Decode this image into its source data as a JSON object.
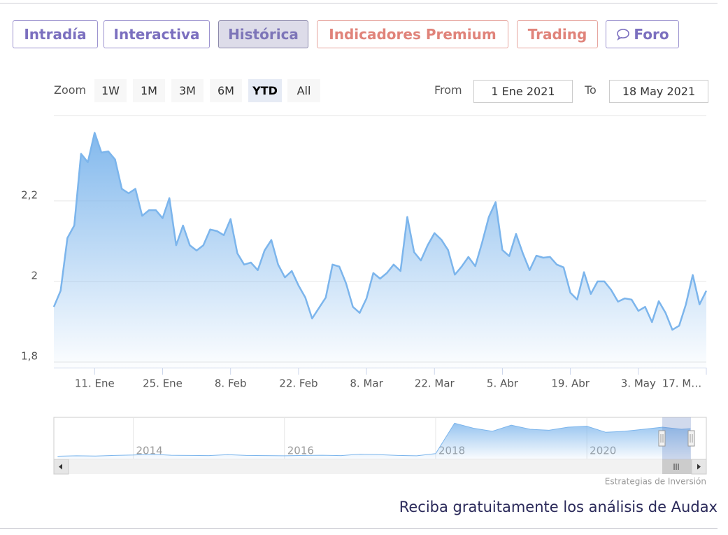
{
  "tabs": [
    "Intradía",
    "Interactiva",
    "Histórica",
    "Indicadores Premium",
    "Trading",
    "Foro"
  ],
  "zoom": {
    "label": "Zoom",
    "buttons": [
      "1W",
      "1M",
      "3M",
      "6M",
      "YTD",
      "All"
    ]
  },
  "range": {
    "from_label": "From",
    "from": "1 Ene 2021",
    "to_label": "To",
    "to": "18 May 2021"
  },
  "chart_data": [
    {
      "type": "area",
      "color": "#7cb5ec",
      "categories": [
        null,
        null,
        null,
        null,
        null,
        null,
        "11. Ene",
        null,
        null,
        null,
        null,
        null,
        null,
        null,
        null,
        null,
        "25. Ene",
        null,
        null,
        null,
        null,
        null,
        null,
        null,
        null,
        null,
        "8. Feb",
        null,
        null,
        null,
        null,
        null,
        null,
        null,
        null,
        null,
        "22. Feb",
        null,
        null,
        null,
        null,
        null,
        null,
        null,
        null,
        null,
        "8. Mar",
        null,
        null,
        null,
        null,
        null,
        null,
        null,
        null,
        null,
        "22. Mar",
        null,
        null,
        null,
        null,
        null,
        null,
        null,
        null,
        null,
        "5. Abr",
        null,
        null,
        null,
        null,
        null,
        null,
        null,
        null,
        null,
        "19. Abr",
        null,
        null,
        null,
        null,
        null,
        null,
        null,
        null,
        null,
        "3. May",
        null,
        null,
        null,
        null,
        null,
        null,
        null,
        null,
        null,
        "17. M…"
      ],
      "values": [
        1.937,
        1.977,
        2.108,
        2.139,
        2.317,
        2.296,
        2.369,
        2.32,
        2.323,
        2.303,
        2.23,
        2.219,
        2.23,
        2.163,
        2.177,
        2.177,
        2.157,
        2.207,
        2.09,
        2.139,
        2.09,
        2.077,
        2.09,
        2.129,
        2.125,
        2.115,
        2.155,
        2.07,
        2.042,
        2.047,
        2.028,
        2.077,
        2.103,
        2.042,
        2.01,
        2.026,
        1.99,
        1.96,
        1.908,
        1.934,
        1.96,
        2.042,
        2.037,
        1.995,
        1.937,
        1.922,
        1.958,
        2.021,
        2.007,
        2.021,
        2.042,
        2.026,
        2.16,
        2.073,
        2.052,
        2.09,
        2.12,
        2.104,
        2.078,
        2.017,
        2.037,
        2.061,
        2.038,
        2.096,
        2.16,
        2.197,
        2.078,
        2.063,
        2.118,
        2.07,
        2.028,
        2.064,
        2.059,
        2.061,
        2.042,
        2.035,
        1.972,
        1.955,
        2.023,
        1.969,
        2.0,
        2.0,
        1.979,
        1.95,
        1.958,
        1.955,
        1.927,
        1.937,
        1.899,
        1.951,
        1.922,
        1.88,
        1.89,
        1.943,
        2.016,
        1.943,
        1.977
      ],
      "ylim": [
        1.786,
        2.412
      ],
      "yticks": [
        {
          "value": 1.8,
          "label": "1,8"
        },
        2,
        {
          "value": 2.2,
          "label": "2,2"
        }
      ],
      "grid": true
    },
    {
      "type": "navigator",
      "color": "#7cb5ec",
      "x": [
        2013,
        2013.25,
        2013.5,
        2013.75,
        2014,
        2014.25,
        2014.5,
        2014.75,
        2015,
        2015.25,
        2015.5,
        2015.75,
        2016,
        2016.25,
        2016.5,
        2016.75,
        2017,
        2017.25,
        2017.5,
        2017.75,
        2018,
        2018.25,
        2018.5,
        2018.75,
        2019,
        2019.25,
        2019.5,
        2019.75,
        2020,
        2020.25,
        2020.5,
        2020.75,
        2021,
        2021.25,
        2021.37
      ],
      "values": [
        0.62,
        0.64,
        0.63,
        0.66,
        0.68,
        0.72,
        0.67,
        0.66,
        0.65,
        0.7,
        0.66,
        0.65,
        0.64,
        0.66,
        0.67,
        0.65,
        0.72,
        0.7,
        0.66,
        0.64,
        0.75,
        2.25,
        2.0,
        1.85,
        2.15,
        1.95,
        1.9,
        2.05,
        2.1,
        1.8,
        1.85,
        1.95,
        2.05,
        1.95,
        1.98
      ],
      "xlim": [
        2012.95,
        2021.58
      ],
      "xticks": [
        2014,
        2016,
        2018,
        2020
      ],
      "ylim": [
        0.5,
        2.5
      ]
    }
  ],
  "credits": "Estrategias de Inversión",
  "footer": "Reciba gratuitamente los análisis de Audax"
}
